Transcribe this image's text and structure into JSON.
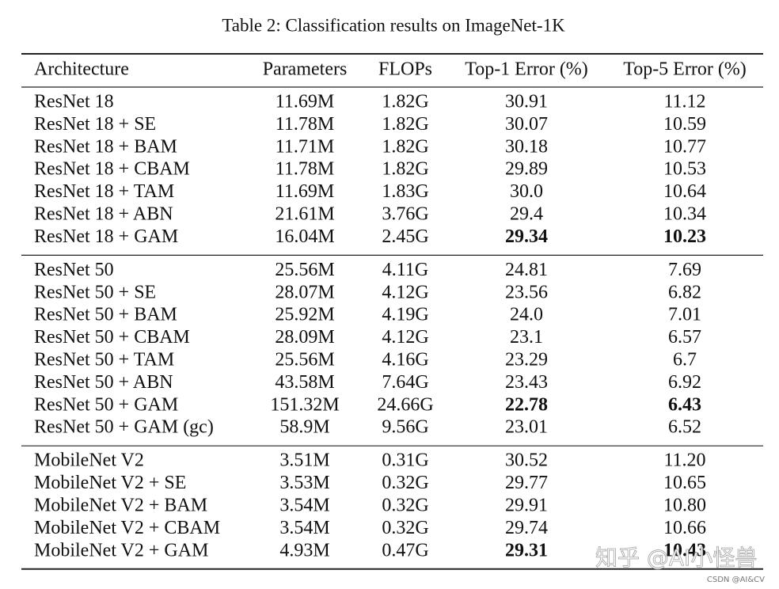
{
  "caption": "Table 2: Classification results on ImageNet-1K",
  "table": {
    "columns": [
      "Architecture",
      "Parameters",
      "FLOPs",
      "Top-1 Error (%)",
      "Top-5 Error (%)"
    ],
    "groups": [
      {
        "rows": [
          [
            "ResNet 18",
            "11.69M",
            "1.82G",
            "30.91",
            "11.12"
          ],
          [
            "ResNet 18 + SE",
            "11.78M",
            "1.82G",
            "30.07",
            "10.59"
          ],
          [
            "ResNet 18 + BAM",
            "11.71M",
            "1.82G",
            "30.18",
            "10.77"
          ],
          [
            "ResNet 18 + CBAM",
            "11.78M",
            "1.82G",
            "29.89",
            "10.53"
          ],
          [
            "ResNet 18 + TAM",
            "11.69M",
            "1.83G",
            "30.0",
            "10.64"
          ],
          [
            "ResNet 18 + ABN",
            "21.61M",
            "3.76G",
            "29.4",
            "10.34"
          ],
          [
            "ResNet 18 + GAM",
            "16.04M",
            "2.45G",
            "29.34",
            "10.23"
          ]
        ],
        "bold": [
          [
            6,
            3
          ],
          [
            6,
            4
          ]
        ]
      },
      {
        "rows": [
          [
            "ResNet 50",
            "25.56M",
            "4.11G",
            "24.81",
            "7.69"
          ],
          [
            "ResNet 50 + SE",
            "28.07M",
            "4.12G",
            "23.56",
            "6.82"
          ],
          [
            "ResNet 50 + BAM",
            "25.92M",
            "4.19G",
            "24.0",
            "7.01"
          ],
          [
            "ResNet 50 + CBAM",
            "28.09M",
            "4.12G",
            "23.1",
            "6.57"
          ],
          [
            "ResNet 50 + TAM",
            "25.56M",
            "4.16G",
            "23.29",
            "6.7"
          ],
          [
            "ResNet 50 + ABN",
            "43.58M",
            "7.64G",
            "23.43",
            "6.92"
          ],
          [
            "ResNet 50 + GAM",
            "151.32M",
            "24.66G",
            "22.78",
            "6.43"
          ],
          [
            "ResNet 50 + GAM (gc)",
            "58.9M",
            "9.56G",
            "23.01",
            "6.52"
          ]
        ],
        "bold": [
          [
            6,
            3
          ],
          [
            6,
            4
          ]
        ]
      },
      {
        "rows": [
          [
            "MobileNet V2",
            "3.51M",
            "0.31G",
            "30.52",
            "11.20"
          ],
          [
            "MobileNet V2 + SE",
            "3.53M",
            "0.32G",
            "29.77",
            "10.65"
          ],
          [
            "MobileNet V2 + BAM",
            "3.54M",
            "0.32G",
            "29.91",
            "10.80"
          ],
          [
            "MobileNet V2 + CBAM",
            "3.54M",
            "0.32G",
            "29.74",
            "10.66"
          ],
          [
            "MobileNet V2 + GAM",
            "4.93M",
            "0.47G",
            "29.31",
            "10.43"
          ]
        ],
        "bold": [
          [
            4,
            3
          ],
          [
            4,
            4
          ]
        ]
      }
    ]
  },
  "watermarks": {
    "zhihu": "知乎 @AI小怪兽",
    "csdn": "CSDN @AI&CV"
  }
}
